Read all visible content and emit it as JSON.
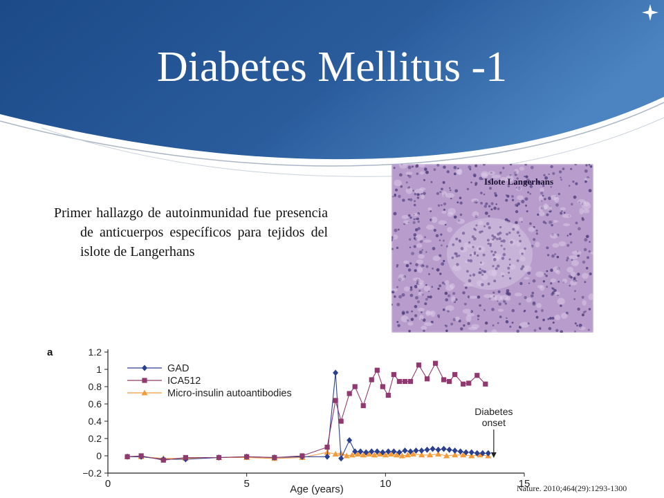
{
  "slide": {
    "title": "Diabetes Mellitus -1",
    "bullet": "Primer hallazgo de autoinmunidad fue presencia de anticuerpos específicos para tejidos del islote de Langerhans",
    "image_label": "Islote Langerhans",
    "citation": "Nature. 2010;464(29):1293-1300"
  },
  "colors": {
    "banner_dark": "#1f4f8f",
    "banner_light": "#3f78b8",
    "gad": "#2b3f8f",
    "ica512": "#8e3a6e",
    "micro_insulin": "#f39a3a",
    "tissue": "#b79ccc"
  },
  "chart_data": {
    "type": "line",
    "panel_label": "a",
    "xlabel": "Age (years)",
    "ylabel": "",
    "xlim": [
      0,
      15
    ],
    "ylim": [
      -0.2,
      1.2
    ],
    "xticks": [
      0,
      5,
      10,
      15
    ],
    "yticks": [
      -0.2,
      0,
      0.2,
      0.4,
      0.6,
      0.8,
      1,
      1.2
    ],
    "legend_position": "top-left",
    "annotation": {
      "text_line1": "Diabetes",
      "text_line2": "onset",
      "x": 13.9
    },
    "series": [
      {
        "name": "GAD",
        "marker": "diamond",
        "x": [
          0.7,
          1.2,
          2.0,
          2.8,
          4.0,
          5.0,
          6.0,
          7.0,
          7.9,
          8.2,
          8.4,
          8.7,
          8.9,
          9.1,
          9.3,
          9.5,
          9.7,
          9.9,
          10.1,
          10.3,
          10.5,
          10.7,
          10.9,
          11.1,
          11.3,
          11.5,
          11.7,
          11.9,
          12.1,
          12.3,
          12.5,
          12.7,
          12.9,
          13.1,
          13.3,
          13.5,
          13.7
        ],
        "y": [
          -0.01,
          -0.01,
          -0.04,
          -0.04,
          -0.02,
          -0.01,
          -0.02,
          -0.01,
          -0.01,
          0.96,
          -0.03,
          0.18,
          0.05,
          0.05,
          0.04,
          0.05,
          0.05,
          0.04,
          0.05,
          0.05,
          0.04,
          0.06,
          0.05,
          0.06,
          0.06,
          0.07,
          0.08,
          0.07,
          0.08,
          0.07,
          0.06,
          0.05,
          0.04,
          0.04,
          0.03,
          0.03,
          0.03
        ]
      },
      {
        "name": "ICA512",
        "marker": "square",
        "x": [
          0.7,
          1.2,
          2.0,
          2.8,
          4.0,
          5.0,
          6.0,
          7.0,
          7.9,
          8.2,
          8.4,
          8.7,
          8.9,
          9.2,
          9.5,
          9.7,
          9.9,
          10.1,
          10.3,
          10.5,
          10.7,
          10.9,
          11.2,
          11.5,
          11.8,
          12.1,
          12.3,
          12.5,
          12.8,
          13.0,
          13.3,
          13.6
        ],
        "y": [
          -0.01,
          0.0,
          -0.05,
          -0.02,
          -0.02,
          -0.01,
          -0.02,
          0.0,
          0.1,
          0.64,
          0.4,
          0.72,
          0.8,
          0.58,
          0.88,
          0.99,
          0.8,
          0.7,
          0.94,
          0.86,
          0.86,
          0.86,
          1.05,
          0.89,
          1.07,
          0.88,
          0.86,
          0.94,
          0.83,
          0.84,
          0.93,
          0.83
        ]
      },
      {
        "name": "Micro-insulin autoantibodies",
        "marker": "triangle",
        "x": [
          0.7,
          1.2,
          2.0,
          2.8,
          4.0,
          5.0,
          6.0,
          7.0,
          7.9,
          8.2,
          8.4,
          8.6,
          8.8,
          9.0,
          9.2,
          9.4,
          9.6,
          9.8,
          10.0,
          10.2,
          10.4,
          10.6,
          10.8,
          11.0,
          11.3,
          11.6,
          11.9,
          12.2,
          12.5,
          12.8,
          13.1,
          13.4,
          13.7
        ],
        "y": [
          -0.01,
          -0.01,
          -0.03,
          -0.03,
          -0.02,
          -0.02,
          -0.03,
          -0.02,
          0.04,
          0.02,
          0.03,
          0.0,
          0.01,
          0.02,
          0.01,
          0.02,
          0.01,
          0.02,
          0.01,
          0.02,
          0.01,
          0.0,
          0.01,
          0.02,
          0.01,
          0.01,
          0.02,
          0.0,
          0.01,
          0.01,
          0.0,
          0.01,
          0.0
        ]
      }
    ]
  }
}
